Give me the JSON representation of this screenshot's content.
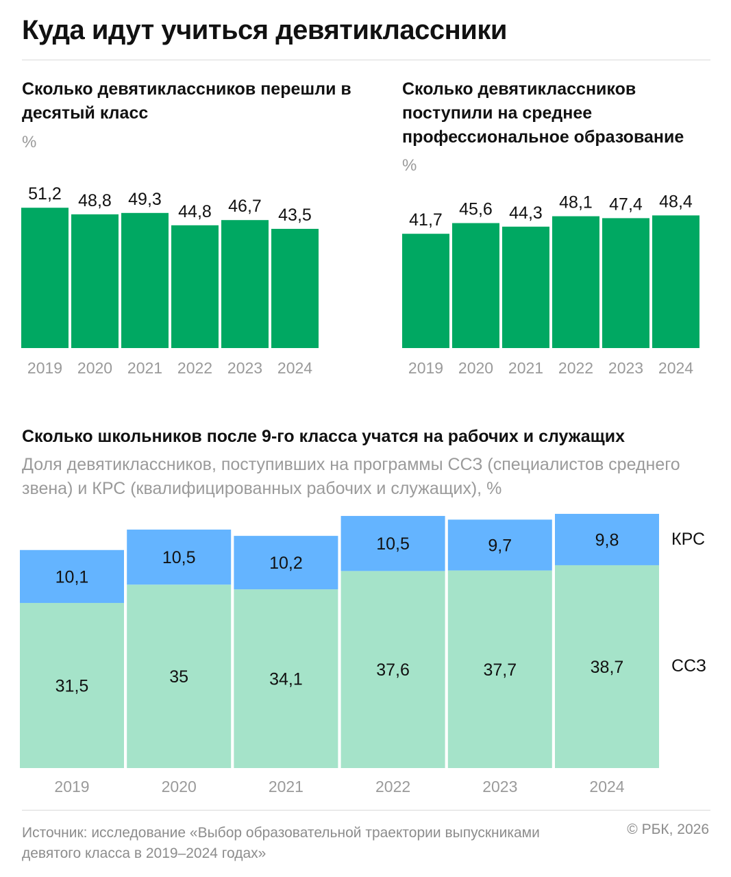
{
  "title": "Куда идут учиться девятиклассники",
  "unit": "%",
  "colors": {
    "bar": "#00a862",
    "ssz": "#a5e3c9",
    "krs": "#64b4ff",
    "axis_text": "#9a9a9a"
  },
  "source": "Источник: исследование «Выбор образовательной траектории выпускниками девятого класса в 2019–2024 годах»",
  "copyright": "© РБК, 2026",
  "chart_data": [
    {
      "type": "bar",
      "title": "Сколько девятиклассников перешли в десятый класс",
      "ylabel": "%",
      "categories": [
        "2019",
        "2020",
        "2021",
        "2022",
        "2023",
        "2024"
      ],
      "values": [
        51.2,
        48.8,
        49.3,
        44.8,
        46.7,
        43.5
      ],
      "value_labels": [
        "51,2",
        "48,8",
        "49,3",
        "44,8",
        "46,7",
        "43,5"
      ]
    },
    {
      "type": "bar",
      "title": "Сколько девятиклассников поступили на среднее профессиональное образование",
      "ylabel": "%",
      "categories": [
        "2019",
        "2020",
        "2021",
        "2022",
        "2023",
        "2024"
      ],
      "values": [
        41.7,
        45.6,
        44.3,
        48.1,
        47.4,
        48.4
      ],
      "value_labels": [
        "41,7",
        "45,6",
        "44,3",
        "48,1",
        "47,4",
        "48,4"
      ]
    },
    {
      "type": "bar",
      "stacked": true,
      "title": "Сколько школьников после 9-го класса учатся на рабочих и служащих",
      "subtitle": "Доля девятиклассников, поступивших на программы ССЗ (специалистов среднего звена) и КРС (квалифицированных рабочих и служащих), %",
      "categories": [
        "2019",
        "2020",
        "2021",
        "2022",
        "2023",
        "2024"
      ],
      "series": [
        {
          "name": "ССЗ",
          "values": [
            31.5,
            35,
            34.1,
            37.6,
            37.7,
            38.7
          ],
          "labels": [
            "31,5",
            "35",
            "34,1",
            "37,6",
            "37,7",
            "38,7"
          ]
        },
        {
          "name": "КРС",
          "values": [
            10.1,
            10.5,
            10.2,
            10.5,
            9.7,
            9.8
          ],
          "labels": [
            "10,1",
            "10,5",
            "10,2",
            "10,5",
            "9,7",
            "9,8"
          ]
        }
      ]
    }
  ]
}
